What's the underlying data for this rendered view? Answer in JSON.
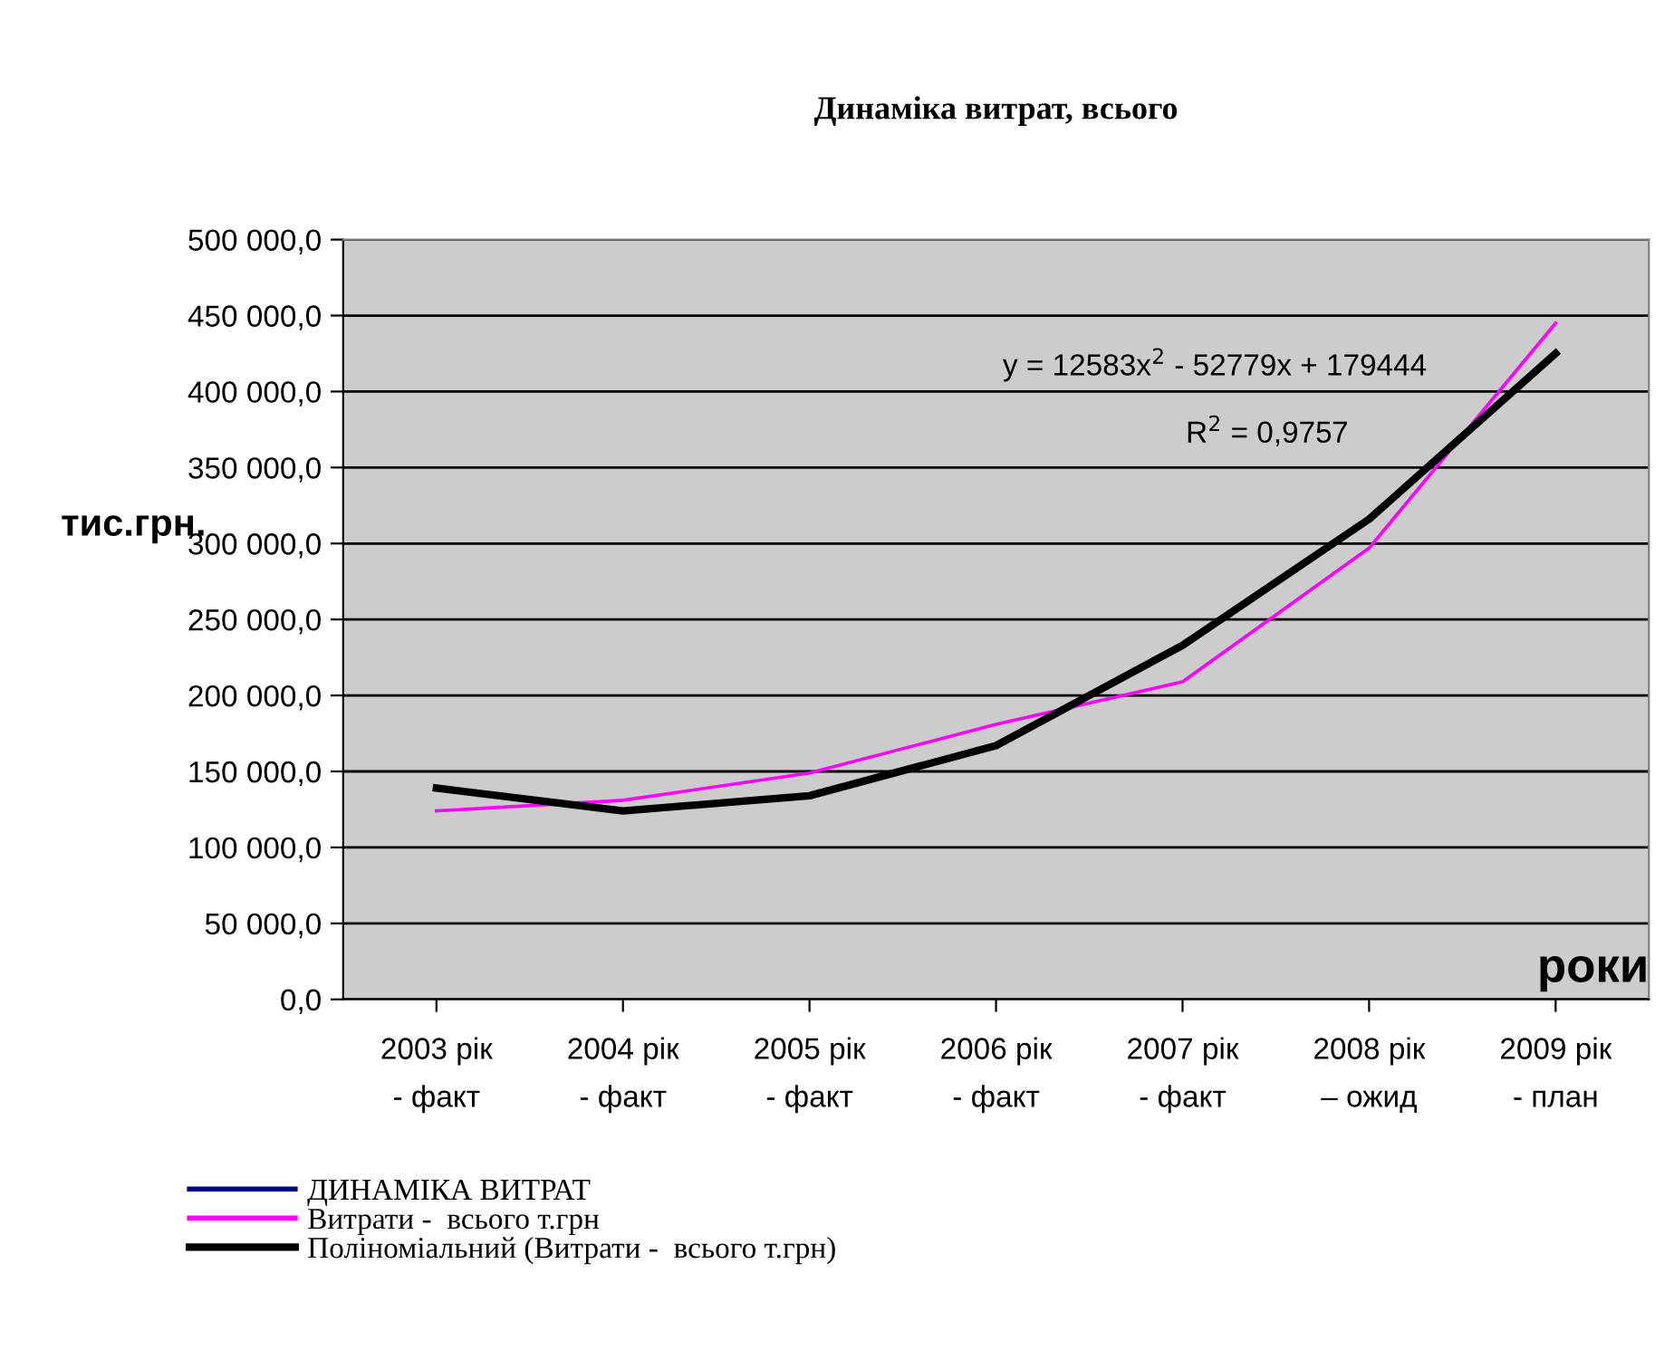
{
  "chart_data": {
    "type": "line",
    "title": "Динаміка витрат, всього",
    "ylabel": "тис.грн.",
    "xlabel": "роки",
    "categories": [
      "2003 рік\n- факт",
      "2004 рік\n- факт",
      "2005 рік\n- факт",
      "2006 рік\n- факт",
      "2007 рік\n- факт",
      "2008 рік\n– ожид",
      "2009 рік\n- план"
    ],
    "series": [
      {
        "name": "ДИНАМІКА ВИТРАТ",
        "color": "#000080",
        "values": [
          null,
          null,
          null,
          null,
          null,
          null,
          null
        ]
      },
      {
        "name": "Витрати -  всього т.грн",
        "color": "#ff00ff",
        "values": [
          124000,
          131000,
          149000,
          181000,
          209000,
          297000,
          445000
        ]
      },
      {
        "name": "Поліноміальний (Витрати -  всього т.грн)",
        "color": "#000000",
        "type": "line",
        "values": [
          139000,
          124000,
          134000,
          167000,
          233000,
          316000,
          425000
        ]
      }
    ],
    "ylim": [
      0,
      500000
    ],
    "yticks": [
      {
        "value": 0,
        "label": "0,0"
      },
      {
        "value": 50000,
        "label": "50 000,0"
      },
      {
        "value": 100000,
        "label": "100 000,0"
      },
      {
        "value": 150000,
        "label": "150 000,0"
      },
      {
        "value": 200000,
        "label": "200 000,0"
      },
      {
        "value": 250000,
        "label": "250 000,0"
      },
      {
        "value": 300000,
        "label": "300 000,0"
      },
      {
        "value": 350000,
        "label": "350 000,0"
      },
      {
        "value": 400000,
        "label": "400 000,0"
      },
      {
        "value": 450000,
        "label": "450 000,0"
      },
      {
        "value": 500000,
        "label": "500 000,0"
      }
    ],
    "annotations": [
      "y = 12583x$^{2}$ - 52779x + 179444",
      "R$^{2}$ = 0,9757"
    ],
    "grid": "y",
    "legend": "bottom"
  }
}
